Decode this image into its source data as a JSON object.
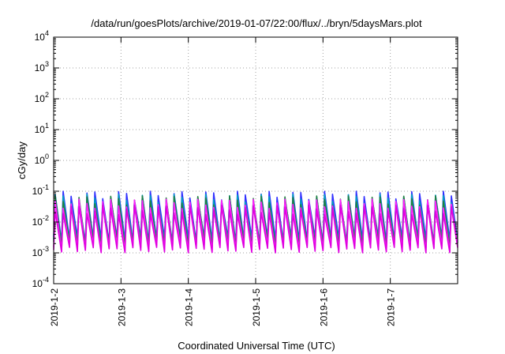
{
  "chart_data": {
    "type": "line",
    "title": "/data/run/goesPlots/archive/2019-01-07/22:00/flux/../bryn/5daysMars.plot",
    "xlabel": "Coordinated Universal Time (UTC)",
    "ylabel": "cGy/day",
    "yscale": "log",
    "ylim": [
      0.0001,
      10000
    ],
    "xlim": [
      "2019-01-02",
      "2019-01-08"
    ],
    "x_tick_labels": [
      "2019-1-2",
      "2019-1-3",
      "2019-1-4",
      "2019-1-5",
      "2019-1-6",
      "2019-1-7"
    ],
    "y_ticks": [
      {
        "value": 0.0001,
        "base": "10",
        "exp": "-4"
      },
      {
        "value": 0.001,
        "base": "10",
        "exp": "-3"
      },
      {
        "value": 0.01,
        "base": "10",
        "exp": "-2"
      },
      {
        "value": 0.1,
        "base": "10",
        "exp": "-1"
      },
      {
        "value": 1,
        "base": "10",
        "exp": "0"
      },
      {
        "value": 10,
        "base": "10",
        "exp": "1"
      },
      {
        "value": 100,
        "base": "10",
        "exp": "2"
      },
      {
        "value": 1000,
        "base": "10",
        "exp": "3"
      },
      {
        "value": 10000,
        "base": "10",
        "exp": "4"
      }
    ],
    "grid": true,
    "oscillation": {
      "cycles_per_day": 8.5,
      "peak_range": [
        0.05,
        0.1
      ],
      "trough_range": [
        0.001,
        0.0015
      ]
    },
    "series": [
      {
        "color": "#3030ff",
        "peak_factor": 1.0,
        "trough_factor": 2.2
      },
      {
        "color": "#00a0c0",
        "peak_factor": 0.8,
        "trough_factor": 1.8
      },
      {
        "color": "#208040",
        "peak_factor": 0.7,
        "trough_factor": 1.6
      },
      {
        "color": "#ff20ff",
        "peak_factor": 0.55,
        "trough_factor": 1.15
      },
      {
        "color": "#e000e0",
        "peak_factor": 0.35,
        "trough_factor": 1.0
      }
    ]
  }
}
